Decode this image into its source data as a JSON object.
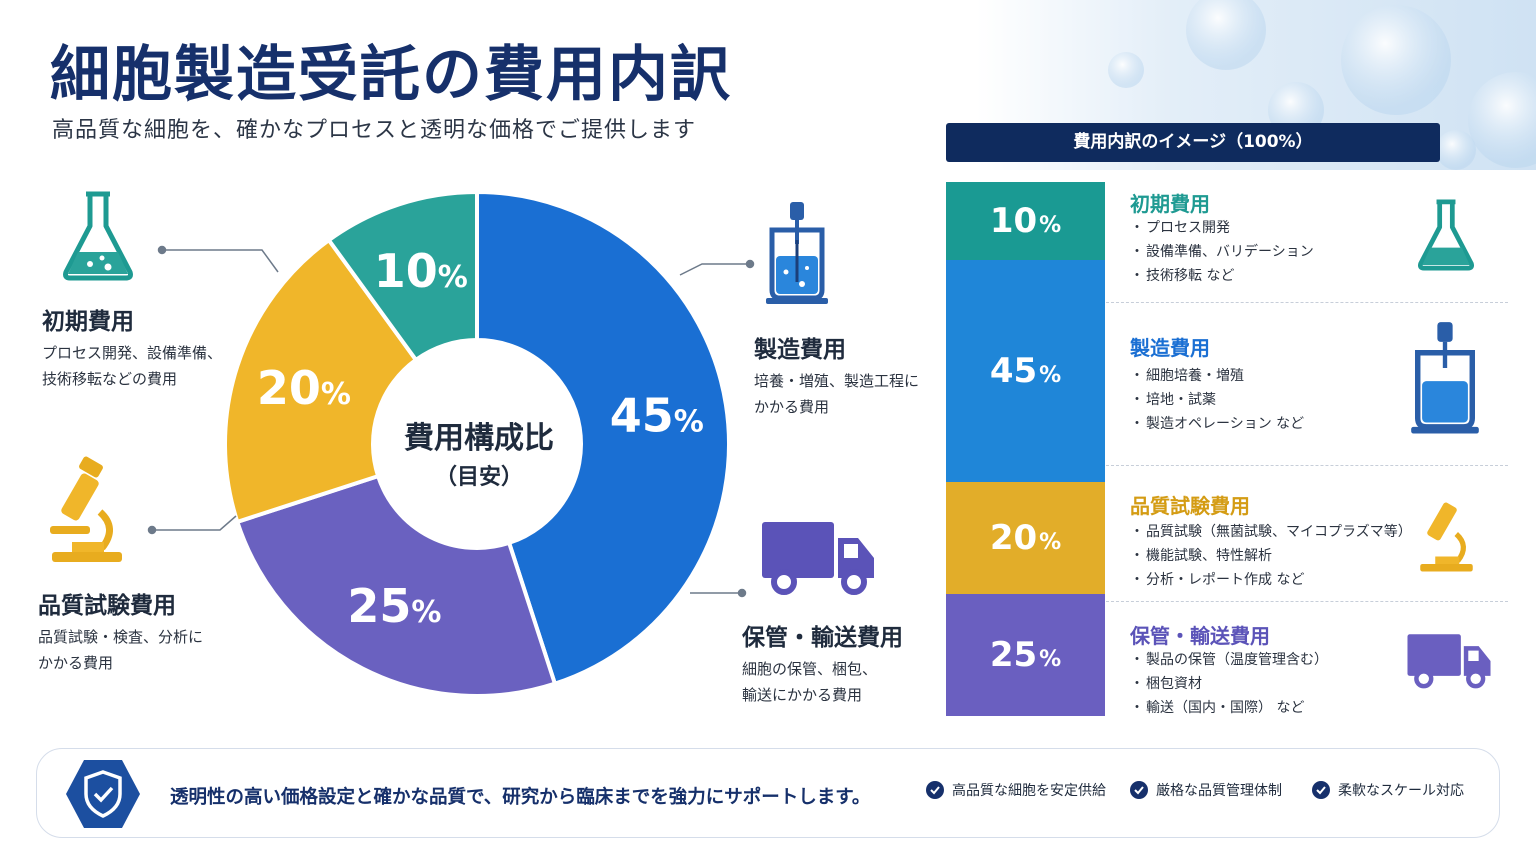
{
  "title": "細胞製造受託の費用内訳",
  "subtitle": "高品質な細胞を、確かなプロセスと透明な価格でご提供します",
  "chart_data": {
    "type": "pie",
    "center_label": {
      "line1": "費用構成比",
      "line2": "（目安）"
    },
    "unit": "%",
    "categories": [
      "製造費用",
      "保管・輸送費用",
      "品質試験費用",
      "初期費用"
    ],
    "values": [
      45,
      25,
      20,
      10
    ],
    "colors": [
      "#1a6fd3",
      "#6a61c0",
      "#f0b62a",
      "#2aa39a"
    ]
  },
  "categories": {
    "initial": {
      "title": "初期費用",
      "desc": [
        "プロセス開発、設備準備、",
        "技術移転などの費用"
      ],
      "icon": "flask-icon",
      "color": "#1e9a92"
    },
    "manufacturing": {
      "title": "製造費用",
      "desc": [
        "培養・増殖、製造工程に",
        "かかる費用"
      ],
      "icon": "bioreactor-icon",
      "color": "#1a6fd3"
    },
    "quality": {
      "title": "品質試験費用",
      "desc": [
        "品質試験・検査、分析に",
        "かかる費用"
      ],
      "icon": "microscope-icon",
      "color": "#e0a81e"
    },
    "storage": {
      "title": "保管・輸送費用",
      "desc": [
        "細胞の保管、梱包、",
        "輸送にかかる費用"
      ],
      "icon": "truck-icon",
      "color": "#5b53b8"
    }
  },
  "breakdown": {
    "header": "費用内訳のイメージ（100%）",
    "percent_sign": "%",
    "segments": [
      {
        "value": "10",
        "title": "初期費用",
        "items": [
          "プロセス開発",
          "設備準備、バリデーション",
          "技術移転 など"
        ],
        "color": "#1a9a93"
      },
      {
        "value": "45",
        "title": "製造費用",
        "items": [
          "細胞培養・増殖",
          "培地・試薬",
          "製造オペレーション など"
        ],
        "color": "#1f86d8"
      },
      {
        "value": "20",
        "title": "品質試験費用",
        "items": [
          "品質試験（無菌試験、マイコプラズマ等）",
          "機能試験、特性解析",
          "分析・レポート作成 など"
        ],
        "color": "#e2ad29"
      },
      {
        "value": "25",
        "title": "保管・輸送費用",
        "items": [
          "製品の保管（温度管理含む）",
          "梱包資材",
          "輸送（国内・国際） など"
        ],
        "color": "#6a5fc0"
      }
    ]
  },
  "footer": {
    "message": "透明性の高い価格設定と確かな品質で、研究から臨床までを強力にサポートします。",
    "features": [
      "高品質な細胞を安定供給",
      "厳格な品質管理体制",
      "柔軟なスケール対応"
    ],
    "shield_icon": "shield-check-icon",
    "check_icon": "check-circle-icon"
  }
}
